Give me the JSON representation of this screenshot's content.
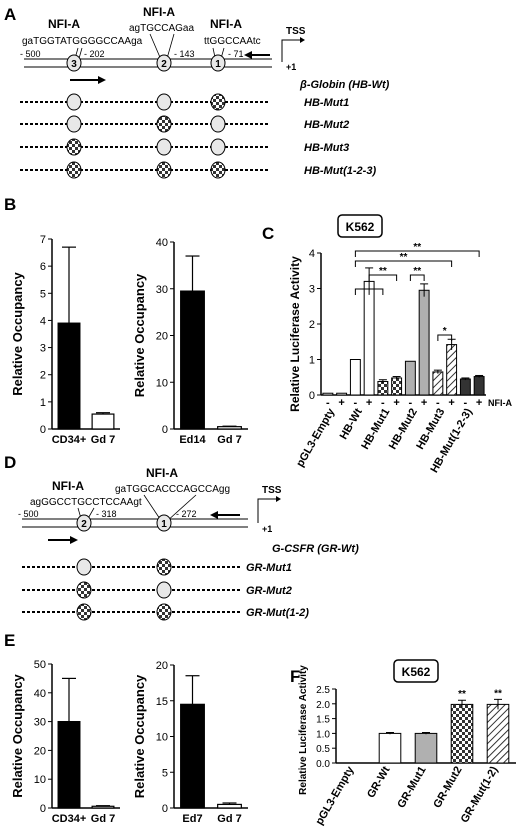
{
  "panels": {
    "A": {
      "letter": "A",
      "sites": [
        {
          "name": "NFI-A",
          "seq": "gaTGGTATGGGGCCAAga",
          "pos": "- 202",
          "num": "3"
        },
        {
          "name": "NFI-A",
          "seq": "agTGCCAGaa",
          "pos": "- 143",
          "num": "2"
        },
        {
          "name": "NFI-A",
          "seq": "ttGGCCAAtc",
          "pos": "- 71",
          "num": "1"
        }
      ],
      "start": "- 500",
      "tss": "TSS",
      "plus1": "+1",
      "construct": "β-Globin (HB-Wt)",
      "mutants": [
        "HB-Mut1",
        "HB-Mut2",
        "HB-Mut3",
        "HB-Mut(1-2-3)"
      ]
    },
    "B": {
      "letter": "B",
      "charts": [
        {
          "ylabel": "Relative Occupancy",
          "ylim": [
            0,
            7
          ],
          "ticks": [
            0,
            1,
            2,
            3,
            4,
            5,
            6,
            7
          ],
          "bars": [
            {
              "label": "CD34+",
              "value": 3.9,
              "err": 2.8,
              "fill": "#000000"
            },
            {
              "label": "Gd 7",
              "value": 0.55,
              "err": 0.05,
              "fill": "#ffffff"
            }
          ]
        },
        {
          "ylabel": "Relative Occupancy",
          "ylim": [
            0,
            40
          ],
          "ticks": [
            0,
            10,
            20,
            30,
            40
          ],
          "bars": [
            {
              "label": "Ed14",
              "value": 29.5,
              "err": 7.5,
              "fill": "#000000"
            },
            {
              "label": "Gd 7",
              "value": 0.5,
              "err": 0.1,
              "fill": "#ffffff"
            }
          ]
        }
      ]
    },
    "C": {
      "letter": "C",
      "cell": "K562",
      "ylabel": "Relative Luciferase Activity",
      "ylim": [
        0,
        4
      ],
      "ticks": [
        0,
        1,
        2,
        3,
        4
      ],
      "nfi_label": "NFI-A",
      "groups": [
        "pGL3-Empty",
        "HB-Wt",
        "HB-Mut1",
        "HB-Mut2",
        "HB-Mut3",
        "HB-Mut(1-2-3)"
      ],
      "signs": [
        "-",
        "+",
        "-",
        "+",
        "-",
        "+",
        "-",
        "+",
        "-",
        "+",
        "-",
        "+"
      ],
      "values": [
        0.05,
        0.05,
        1.0,
        3.2,
        0.38,
        0.48,
        0.95,
        2.95,
        0.65,
        1.42,
        0.45,
        0.52
      ],
      "errors": [
        0,
        0,
        0,
        0.38,
        0.05,
        0.04,
        0,
        0.18,
        0.05,
        0.15,
        0.03,
        0.03
      ],
      "sig_labels": [
        "**",
        "**",
        "**",
        "**",
        "*"
      ]
    },
    "D": {
      "letter": "D",
      "sites": [
        {
          "name": "NFI-A",
          "seq": "agGGCCTGCCTCCAAgt",
          "pos": "- 318",
          "num": "2"
        },
        {
          "name": "NFI-A",
          "seq": "gaTGGCACCCAGCCAgg",
          "pos": "- 272",
          "num": "1"
        }
      ],
      "start": "- 500",
      "tss": "TSS",
      "plus1": "+1",
      "construct": "G-CSFR (GR-Wt)",
      "mutants": [
        "GR-Mut1",
        "GR-Mut2",
        "GR-Mut(1-2)"
      ]
    },
    "E": {
      "letter": "E",
      "charts": [
        {
          "ylabel": "Relative Occupancy",
          "ylim": [
            0,
            50
          ],
          "ticks": [
            0,
            10,
            20,
            30,
            40,
            50
          ],
          "bars": [
            {
              "label": "CD34+",
              "value": 30,
              "err": 15,
              "fill": "#000000"
            },
            {
              "label": "Gd 7",
              "value": 0.6,
              "err": 0.2,
              "fill": "#ffffff"
            }
          ]
        },
        {
          "ylabel": "Relative Occupancy",
          "ylim": [
            0,
            20
          ],
          "ticks": [
            0,
            5,
            10,
            15,
            20
          ],
          "bars": [
            {
              "label": "Ed7",
              "value": 14.5,
              "err": 4.0,
              "fill": "#000000"
            },
            {
              "label": "Gd 7",
              "value": 0.5,
              "err": 0.2,
              "fill": "#ffffff"
            }
          ]
        }
      ]
    },
    "F": {
      "letter": "F",
      "cell": "K562",
      "ylabel": "Relative Luciferase Activity",
      "ylim": [
        0,
        2.5
      ],
      "ticks": [
        "0.0",
        "0.5",
        "1.0",
        "1.5",
        "2.0",
        "2.5"
      ],
      "categories": [
        "pGL3-Empty",
        "GR-Wt",
        "GR-Mut1",
        "GR-Mut2",
        "GR-Mut(1-2)"
      ],
      "values": [
        0.0,
        1.0,
        1.0,
        1.98,
        1.98
      ],
      "errors": [
        0,
        0.03,
        0.03,
        0.14,
        0.17
      ],
      "sig_labels": [
        "**",
        "**"
      ]
    }
  }
}
